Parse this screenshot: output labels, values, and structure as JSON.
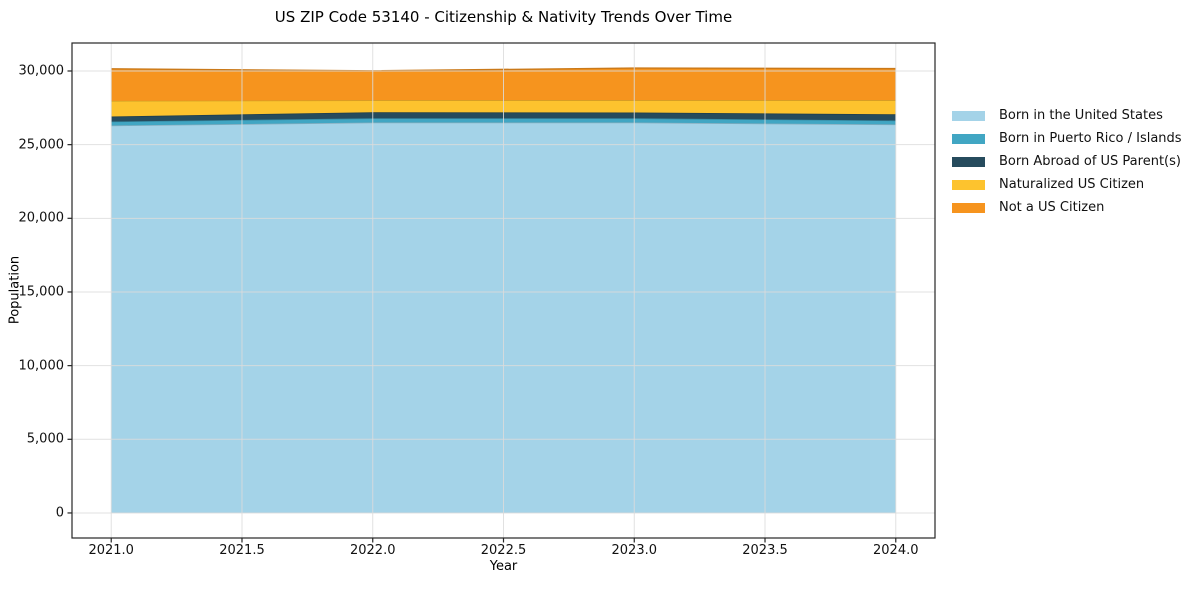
{
  "title": "US ZIP Code 53140 - Citizenship & Nativity Trends Over Time",
  "x_axis": {
    "label": "Year",
    "tick_labels": [
      "2021.0",
      "2021.5",
      "2022.0",
      "2022.5",
      "2023.0",
      "2023.5",
      "2024.0"
    ],
    "tick_values": [
      2021,
      2021.5,
      2022,
      2022.5,
      2023,
      2023.5,
      2024
    ]
  },
  "y_axis": {
    "label": "Population",
    "tick_labels": [
      "0",
      "5,000",
      "10,000",
      "15,000",
      "20,000",
      "25,000",
      "30,000"
    ],
    "tick_values": [
      0,
      5000,
      10000,
      15000,
      20000,
      25000,
      30000
    ]
  },
  "chart_data": {
    "type": "area",
    "stacked": true,
    "title": "US ZIP Code 53140 - Citizenship & Nativity Trends Over Time",
    "xlabel": "Year",
    "ylabel": "Population",
    "x": [
      2021,
      2022,
      2023,
      2024
    ],
    "series": [
      {
        "name": "Born in the United States",
        "color": "#A4D3E8",
        "values": [
          26300,
          26500,
          26500,
          26370
        ]
      },
      {
        "name": "Born in Puerto Rico / Islands",
        "color": "#41A6C3",
        "values": [
          270,
          290,
          290,
          270
        ]
      },
      {
        "name": "Born Abroad of US Parent(s)",
        "color": "#264B5D",
        "values": [
          340,
          410,
          390,
          420
        ]
      },
      {
        "name": "Naturalized US Citizen",
        "color": "#FDC32E",
        "values": [
          1060,
          810,
          830,
          950
        ]
      },
      {
        "name": "Not a US Citizen",
        "color": "#F6941E",
        "values": [
          2180,
          2000,
          2190,
          2150
        ]
      }
    ],
    "totals": [
      30150,
      30010,
      30200,
      30160
    ],
    "xlim": [
      2020.85,
      2024.15
    ],
    "ylim": [
      -1700,
      31900
    ],
    "grid": true,
    "legend_position": "right outside"
  },
  "colors": {
    "background": "#ffffff",
    "spine": "#262626",
    "grid": "#dcdcdc",
    "tick": "#262626"
  }
}
